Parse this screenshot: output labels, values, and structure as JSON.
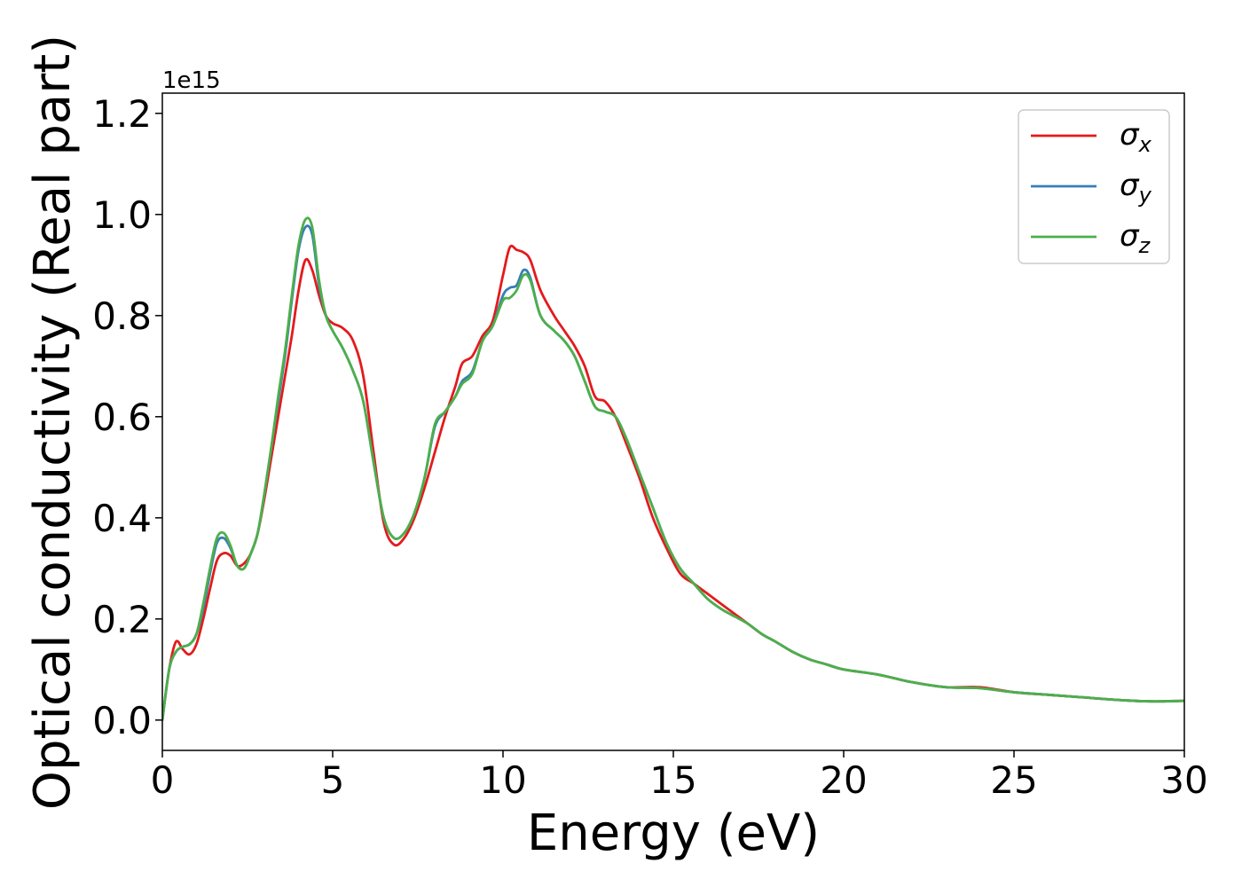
{
  "chart_data": {
    "type": "line",
    "xlabel": "Energy (eV)",
    "ylabel": "Optical conductivity (Real part)",
    "y_offset_label": "1e15",
    "xlim": [
      0,
      30
    ],
    "ylim": [
      -0.06,
      1.24
    ],
    "xticks": [
      0,
      5,
      10,
      15,
      20,
      25,
      30
    ],
    "yticks": [
      0.0,
      0.2,
      0.4,
      0.6,
      0.8,
      1.0,
      1.2
    ],
    "xtick_labels": [
      "0",
      "5",
      "10",
      "15",
      "20",
      "25",
      "30"
    ],
    "ytick_labels": [
      "0.0",
      "0.2",
      "0.4",
      "0.6",
      "0.8",
      "1.0",
      "1.2"
    ],
    "grid": false,
    "legend_position": "top-right",
    "x": [
      0,
      0.2,
      0.4,
      0.6,
      0.8,
      1.0,
      1.2,
      1.4,
      1.6,
      1.8,
      2.0,
      2.2,
      2.4,
      2.6,
      2.8,
      3.0,
      3.2,
      3.4,
      3.6,
      3.8,
      4.0,
      4.2,
      4.4,
      4.6,
      4.8,
      5.0,
      5.3,
      5.6,
      5.9,
      6.2,
      6.5,
      6.8,
      7.1,
      7.4,
      7.7,
      8.0,
      8.3,
      8.6,
      8.8,
      9.1,
      9.4,
      9.7,
      10.0,
      10.2,
      10.4,
      10.6,
      10.8,
      11.1,
      11.5,
      11.8,
      12.1,
      12.4,
      12.7,
      13.0,
      13.3,
      13.6,
      14.0,
      14.4,
      14.8,
      15.2,
      15.6,
      16.0,
      16.4,
      16.8,
      17.2,
      17.6,
      18.0,
      18.5,
      19.0,
      19.5,
      20.0,
      21.0,
      22.0,
      23.0,
      24.0,
      25.0,
      26.0,
      27.0,
      28.0,
      29.0,
      30.0
    ],
    "series": [
      {
        "name": "σ_x",
        "label_main": "σ",
        "label_sub": "x",
        "color": "#e41a1c",
        "values": [
          0.0,
          0.1,
          0.155,
          0.14,
          0.13,
          0.15,
          0.2,
          0.26,
          0.315,
          0.33,
          0.325,
          0.305,
          0.31,
          0.33,
          0.37,
          0.44,
          0.52,
          0.6,
          0.68,
          0.76,
          0.85,
          0.91,
          0.89,
          0.84,
          0.8,
          0.785,
          0.775,
          0.75,
          0.68,
          0.53,
          0.39,
          0.347,
          0.36,
          0.4,
          0.46,
          0.53,
          0.6,
          0.66,
          0.705,
          0.72,
          0.76,
          0.79,
          0.88,
          0.935,
          0.93,
          0.925,
          0.91,
          0.85,
          0.8,
          0.77,
          0.74,
          0.7,
          0.64,
          0.63,
          0.6,
          0.55,
          0.48,
          0.4,
          0.34,
          0.29,
          0.27,
          0.25,
          0.23,
          0.21,
          0.19,
          0.17,
          0.155,
          0.135,
          0.12,
          0.11,
          0.1,
          0.09,
          0.075,
          0.065,
          0.065,
          0.055,
          0.05,
          0.045,
          0.04,
          0.037,
          0.038
        ]
      },
      {
        "name": "σ_y",
        "label_main": "σ",
        "label_sub": "y",
        "color": "#377eb8",
        "values": [
          0.0,
          0.1,
          0.135,
          0.145,
          0.15,
          0.17,
          0.22,
          0.29,
          0.35,
          0.36,
          0.34,
          0.305,
          0.3,
          0.33,
          0.37,
          0.45,
          0.54,
          0.63,
          0.72,
          0.83,
          0.93,
          0.975,
          0.96,
          0.86,
          0.8,
          0.77,
          0.735,
          0.69,
          0.63,
          0.51,
          0.4,
          0.36,
          0.37,
          0.41,
          0.48,
          0.58,
          0.61,
          0.64,
          0.67,
          0.69,
          0.75,
          0.78,
          0.84,
          0.855,
          0.86,
          0.89,
          0.875,
          0.8,
          0.77,
          0.75,
          0.72,
          0.67,
          0.62,
          0.61,
          0.6,
          0.56,
          0.49,
          0.42,
          0.35,
          0.3,
          0.27,
          0.24,
          0.22,
          0.205,
          0.19,
          0.17,
          0.155,
          0.135,
          0.12,
          0.11,
          0.1,
          0.09,
          0.075,
          0.065,
          0.063,
          0.055,
          0.05,
          0.045,
          0.04,
          0.037,
          0.038
        ]
      },
      {
        "name": "σ_z",
        "label_main": "σ",
        "label_sub": "z",
        "color": "#4daf4a",
        "values": [
          0.0,
          0.1,
          0.135,
          0.145,
          0.15,
          0.17,
          0.23,
          0.3,
          0.36,
          0.37,
          0.345,
          0.305,
          0.3,
          0.33,
          0.37,
          0.45,
          0.54,
          0.64,
          0.73,
          0.84,
          0.94,
          0.99,
          0.975,
          0.87,
          0.8,
          0.77,
          0.735,
          0.69,
          0.63,
          0.51,
          0.4,
          0.36,
          0.37,
          0.41,
          0.48,
          0.585,
          0.61,
          0.64,
          0.665,
          0.685,
          0.75,
          0.78,
          0.83,
          0.835,
          0.85,
          0.88,
          0.87,
          0.8,
          0.77,
          0.75,
          0.72,
          0.67,
          0.62,
          0.61,
          0.6,
          0.56,
          0.49,
          0.42,
          0.35,
          0.3,
          0.27,
          0.24,
          0.22,
          0.205,
          0.19,
          0.17,
          0.155,
          0.135,
          0.12,
          0.11,
          0.1,
          0.09,
          0.075,
          0.065,
          0.063,
          0.055,
          0.05,
          0.045,
          0.04,
          0.037,
          0.038
        ]
      }
    ]
  }
}
